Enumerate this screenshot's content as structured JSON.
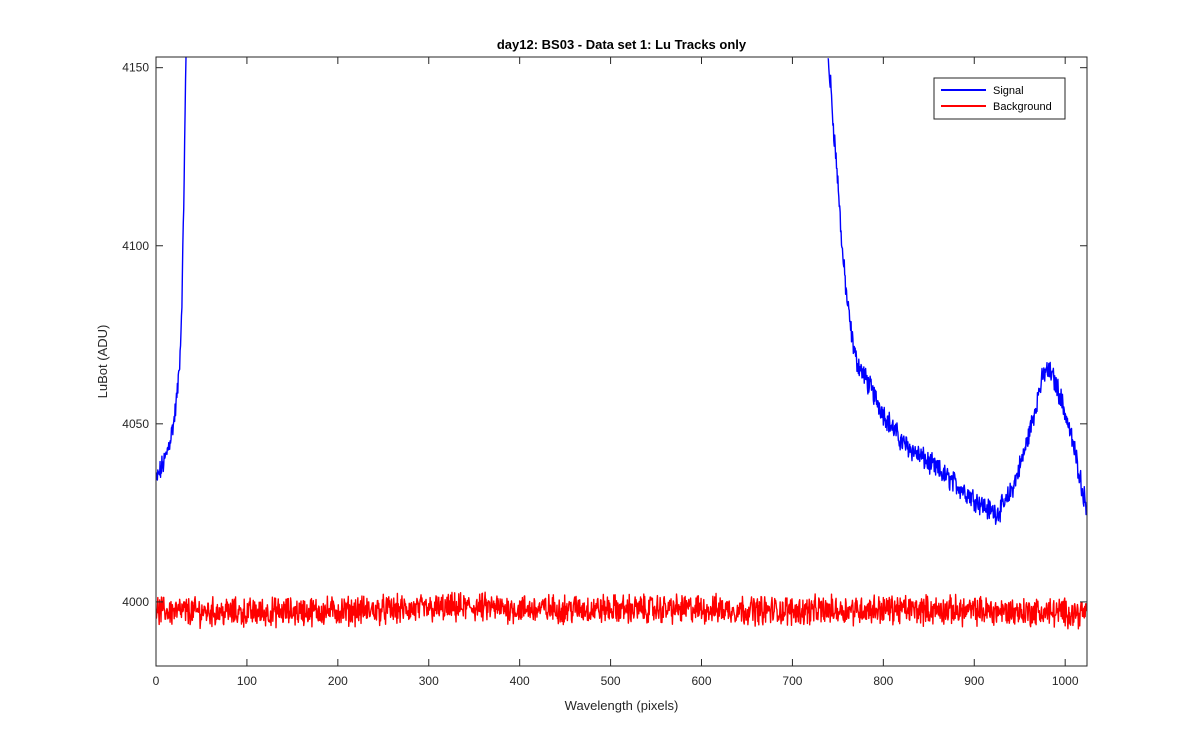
{
  "chart_data": {
    "type": "line",
    "title": "day12: BS03 - Data set 1: Lu Tracks only",
    "xlabel": "Wavelength (pixels)",
    "ylabel": "LuBot (ADU)",
    "xlim": [
      0,
      1024
    ],
    "ylim": [
      3982,
      4153
    ],
    "xticks": [
      0,
      100,
      200,
      300,
      400,
      500,
      600,
      700,
      800,
      900,
      1000
    ],
    "yticks": [
      4000,
      4050,
      4100,
      4150
    ],
    "grid": false,
    "legend_position": "top-right",
    "series": [
      {
        "name": "Signal",
        "color": "#0000ff",
        "noise_amplitude": 2.5,
        "segments": [
          {
            "x": [
              0,
              5,
              10,
              15,
              20,
              24,
              27,
              29,
              31,
              33
            ],
            "y": [
              4034,
              4037,
              4040,
              4045,
              4051,
              4060,
              4072,
              4090,
              4120,
              4153
            ]
          },
          {
            "x": [
              739,
              742,
              745,
              750,
              755,
              760,
              765,
              770,
              780,
              790,
              800,
              810,
              820,
              840,
              860,
              880,
              900,
              915,
              925,
              935,
              945,
              955,
              965,
              972,
              978,
              985,
              993,
              1000,
              1008,
              1015,
              1020,
              1024
            ],
            "y": [
              4153,
              4145,
              4134,
              4118,
              4098,
              4085,
              4075,
              4068,
              4063,
              4058,
              4053,
              4049,
              4045,
              4041,
              4037,
              4033,
              4029,
              4026,
              4025,
              4028,
              4034,
              4042,
              4052,
              4060,
              4065,
              4064,
              4059,
              4053,
              4045,
              4037,
              4030,
              4027
            ]
          }
        ]
      },
      {
        "name": "Background",
        "color": "#ff0000",
        "noise_amplitude": 3.2,
        "segments": [
          {
            "x": [
              0,
              100,
              200,
              300,
              350,
              400,
              500,
              600,
              700,
              800,
              900,
              1000,
              1024
            ],
            "y": [
              3997.5,
              3997,
              3997.5,
              3998,
              3998.5,
              3998,
              3998,
              3998,
              3997.5,
              3998,
              3997.5,
              3997,
              3997
            ]
          }
        ]
      }
    ]
  }
}
